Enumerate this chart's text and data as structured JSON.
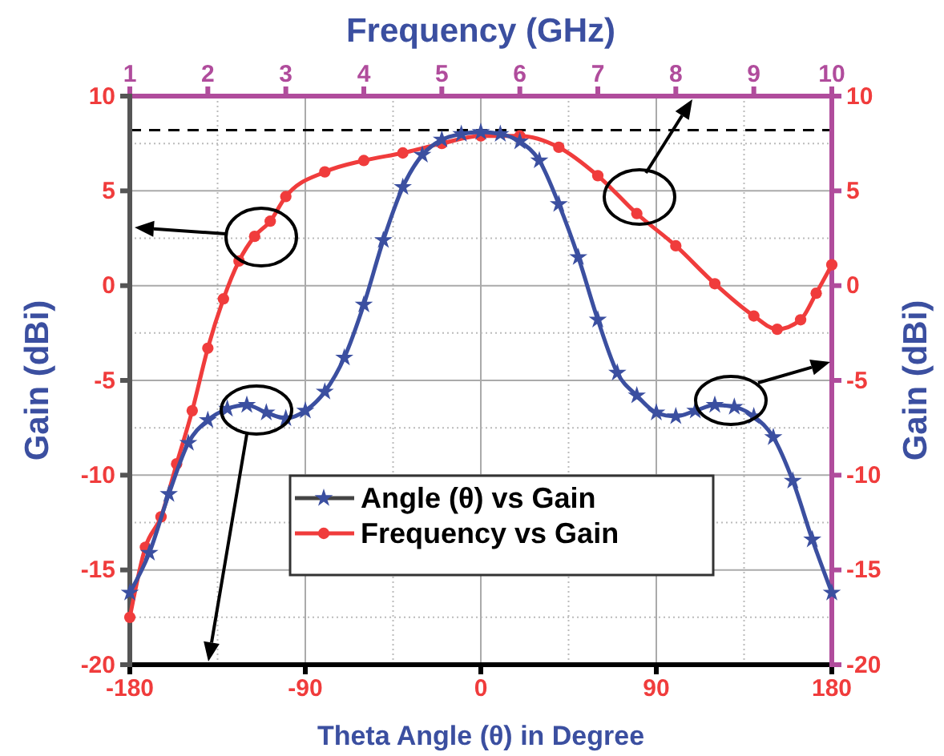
{
  "chart_data": {
    "type": "line",
    "xlabel": "Theta Angle (θ) in Degree",
    "ylabel": "Gain (dBi)",
    "y2label": "Gain (dBi)",
    "x2label": "Frequency (GHz)",
    "xlim": [
      -180,
      180
    ],
    "xticks": [
      -180,
      -90,
      0,
      90,
      180
    ],
    "x2lim": [
      1,
      10
    ],
    "x2ticks": [
      1,
      2,
      3,
      4,
      5,
      6,
      7,
      8,
      9,
      10
    ],
    "ylim": [
      -20,
      10
    ],
    "yticks": [
      -20,
      -15,
      -10,
      -5,
      0,
      5,
      10
    ],
    "y2lim": [
      -20,
      10
    ],
    "y2ticks": [
      -20,
      -15,
      -10,
      -5,
      0,
      5,
      10
    ],
    "grid": true,
    "legend": "bottom",
    "ref_lines": [
      {
        "axis": "y",
        "value": 8.2,
        "color": "#000000",
        "line_style": "dashed"
      }
    ],
    "series": [
      {
        "name": "Angle (θ) vs Gain",
        "color": "#3b4fa0",
        "marker": "star",
        "x": [
          -180,
          -170,
          -160,
          -150,
          -140,
          -130,
          -120,
          -110,
          -100,
          -90,
          -80,
          -70,
          -60,
          -50,
          -40,
          -30,
          -20,
          -10,
          0,
          10,
          20,
          30,
          40,
          50,
          60,
          70,
          80,
          90,
          100,
          110,
          120,
          130,
          140,
          150,
          160,
          170,
          180
        ],
        "values": [
          -16.2,
          -14.1,
          -11,
          -8.3,
          -7.1,
          -6.5,
          -6.3,
          -6.7,
          -7,
          -6.6,
          -5.6,
          -3.8,
          -1,
          2.4,
          5.2,
          6.9,
          7.7,
          8,
          8.1,
          8,
          7.6,
          6.6,
          4.3,
          1.5,
          -1.8,
          -4.6,
          -5.8,
          -6.7,
          -6.9,
          -6.6,
          -6.3,
          -6.4,
          -6.9,
          -8,
          -10.3,
          -13.4,
          -16.2
        ]
      },
      {
        "name": "Frequency vs Gain",
        "color": "#f03c3c",
        "marker": "circle",
        "axis": "x2",
        "x": [
          1,
          1.2,
          1.4,
          1.6,
          1.8,
          2,
          2.2,
          2.4,
          2.6,
          2.8,
          3,
          3.5,
          4,
          4.5,
          5,
          5.5,
          6,
          6.5,
          7,
          7.5,
          8,
          8.5,
          9,
          9.3,
          9.6,
          9.8,
          10
        ],
        "values": [
          -17.5,
          -13.8,
          -12.2,
          -9.4,
          -6.6,
          -3.3,
          -0.7,
          1.3,
          2.6,
          3.4,
          4.7,
          6,
          6.6,
          7,
          7.5,
          7.9,
          7.9,
          7.3,
          5.8,
          3.8,
          2.1,
          0.1,
          -1.6,
          -2.3,
          -1.8,
          -0.4,
          1.1
        ]
      }
    ]
  }
}
